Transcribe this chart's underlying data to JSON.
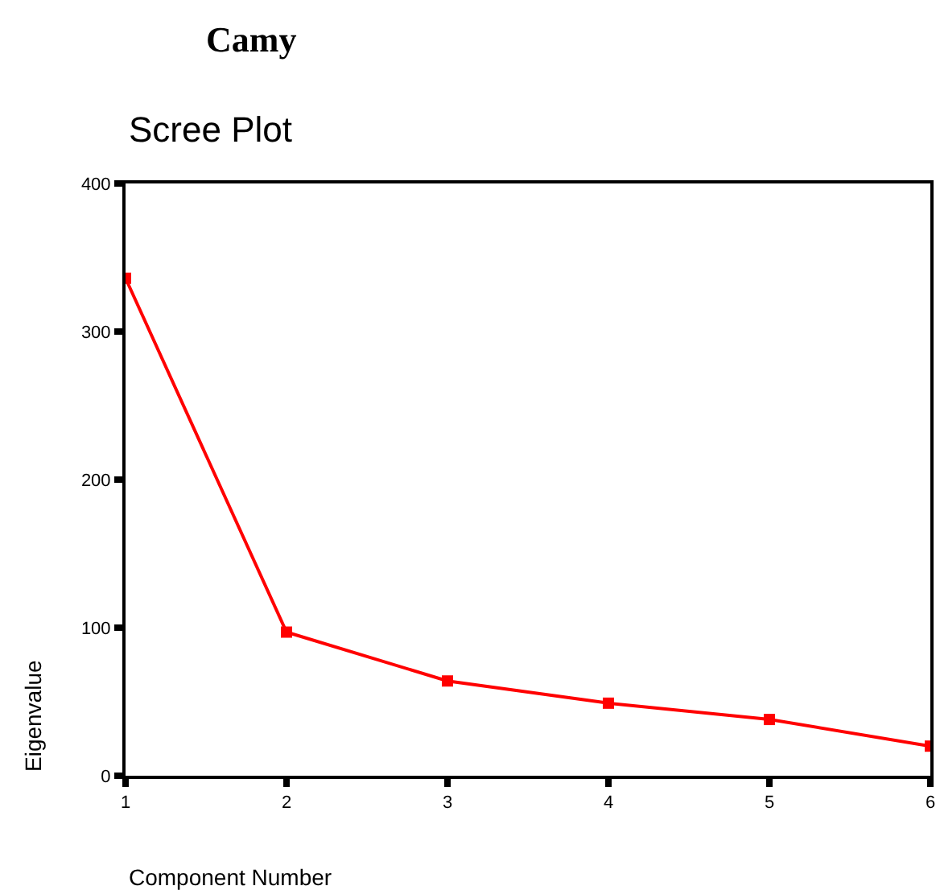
{
  "chart_data": {
    "type": "line",
    "title": "Camy",
    "subtitle": "Scree Plot",
    "xlabel": "Component Number",
    "ylabel": "Eigenvalue",
    "x": [
      1,
      2,
      3,
      4,
      5,
      6
    ],
    "series": [
      {
        "color": "#ff0000",
        "values": [
          336,
          97,
          64,
          49,
          38,
          20
        ]
      }
    ],
    "xlim": [
      1,
      6
    ],
    "xticks": [
      1,
      2,
      3,
      4,
      5,
      6
    ],
    "ylim": [
      0,
      400
    ],
    "yticks": [
      0,
      100,
      200,
      300,
      400
    ],
    "grid": false,
    "marker": "square",
    "line_style": "solid"
  }
}
